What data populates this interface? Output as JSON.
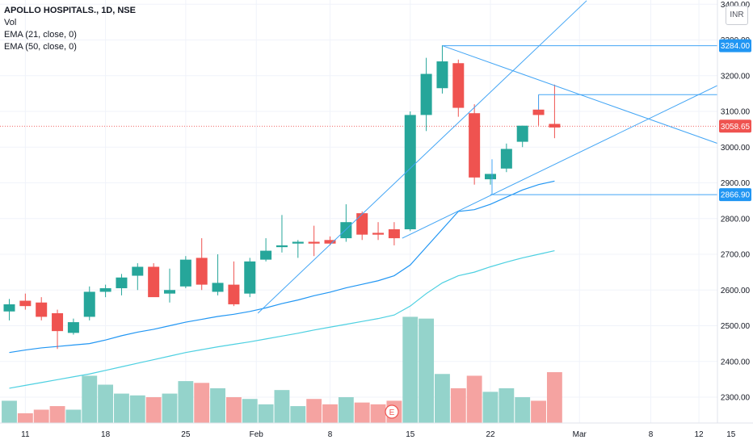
{
  "legend": {
    "title": "APOLLO HOSPITALS., 1D, NSE",
    "vol": "Vol",
    "ema21": "EMA (21, close, 0)",
    "ema50": "EMA (50, close, 0)"
  },
  "currency": "INR",
  "earnings_marker": "E",
  "colors": {
    "up": "#26a69a",
    "down": "#ef5350",
    "vol_up": "#94d3cb",
    "vol_down": "#f5a3a1",
    "ema21": "#2196f3",
    "ema50": "#4dd0e1",
    "trendline": "#42a5f5",
    "tag_blue": "#2196f3",
    "tag_red": "#ef5350"
  },
  "chart_data": {
    "type": "candlestick",
    "y_ticks": [
      2300,
      2400,
      2500,
      2600,
      2700,
      2800,
      2900,
      3000,
      3100,
      3200,
      3300,
      3400
    ],
    "y_tick_labels": [
      "2300.00",
      "2400.00",
      "2500.00",
      "2600.00",
      "2700.00",
      "2800.00",
      "2900.00",
      "3000.00",
      "3100.00",
      "3200.00",
      "3300.00",
      "3400.00"
    ],
    "x_ticks": [
      {
        "label": "11",
        "bar": 1
      },
      {
        "label": "18",
        "bar": 6
      },
      {
        "label": "25",
        "bar": 11
      },
      {
        "label": "Feb",
        "bar": 15
      },
      {
        "label": "8",
        "bar": 20
      },
      {
        "label": "15",
        "bar": 25
      },
      {
        "label": "22",
        "bar": 30
      },
      {
        "label": "Mar",
        "bar": 35
      },
      {
        "label": "8",
        "bar": 40
      },
      {
        "label": "12",
        "bar": 43
      },
      {
        "label": "15",
        "bar": 45
      }
    ],
    "candles": [
      {
        "o": 2540,
        "h": 2575,
        "l": 2515,
        "c": 2560,
        "v": 2290
      },
      {
        "o": 2570,
        "h": 2590,
        "l": 2545,
        "c": 2555,
        "v": 2255
      },
      {
        "o": 2565,
        "h": 2580,
        "l": 2515,
        "c": 2525,
        "v": 2265
      },
      {
        "o": 2535,
        "h": 2545,
        "l": 2435,
        "c": 2485,
        "v": 2275
      },
      {
        "o": 2480,
        "h": 2520,
        "l": 2475,
        "c": 2510,
        "v": 2265
      },
      {
        "o": 2525,
        "h": 2610,
        "l": 2515,
        "c": 2595,
        "v": 2360
      },
      {
        "o": 2595,
        "h": 2615,
        "l": 2580,
        "c": 2605,
        "v": 2335
      },
      {
        "o": 2605,
        "h": 2645,
        "l": 2585,
        "c": 2635,
        "v": 2310
      },
      {
        "o": 2640,
        "h": 2675,
        "l": 2600,
        "c": 2665,
        "v": 2305
      },
      {
        "o": 2665,
        "h": 2675,
        "l": 2585,
        "c": 2580,
        "v": 2300
      },
      {
        "o": 2590,
        "h": 2660,
        "l": 2565,
        "c": 2600,
        "v": 2310
      },
      {
        "o": 2610,
        "h": 2695,
        "l": 2605,
        "c": 2685,
        "v": 2345
      },
      {
        "o": 2690,
        "h": 2745,
        "l": 2600,
        "c": 2615,
        "v": 2340
      },
      {
        "o": 2595,
        "h": 2700,
        "l": 2585,
        "c": 2620,
        "v": 2325
      },
      {
        "o": 2615,
        "h": 2680,
        "l": 2555,
        "c": 2560,
        "v": 2300
      },
      {
        "o": 2590,
        "h": 2690,
        "l": 2580,
        "c": 2680,
        "v": 2295
      },
      {
        "o": 2685,
        "h": 2745,
        "l": 2680,
        "c": 2710,
        "v": 2280
      },
      {
        "o": 2720,
        "h": 2810,
        "l": 2705,
        "c": 2725,
        "v": 2320
      },
      {
        "o": 2730,
        "h": 2740,
        "l": 2690,
        "c": 2735,
        "v": 2275
      },
      {
        "o": 2735,
        "h": 2780,
        "l": 2695,
        "c": 2730,
        "v": 2295
      },
      {
        "o": 2740,
        "h": 2750,
        "l": 2725,
        "c": 2730,
        "v": 2280
      },
      {
        "o": 2745,
        "h": 2840,
        "l": 2735,
        "c": 2790,
        "v": 2300
      },
      {
        "o": 2815,
        "h": 2820,
        "l": 2740,
        "c": 2755,
        "v": 2285
      },
      {
        "o": 2760,
        "h": 2790,
        "l": 2740,
        "c": 2755,
        "v": 2280
      },
      {
        "o": 2770,
        "h": 2790,
        "l": 2725,
        "c": 2745,
        "v": 2290
      },
      {
        "o": 2770,
        "h": 3100,
        "l": 2765,
        "c": 3090,
        "v": 2525
      },
      {
        "o": 3090,
        "h": 3250,
        "l": 3045,
        "c": 3205,
        "v": 2520
      },
      {
        "o": 3165,
        "h": 3285,
        "l": 3150,
        "c": 3240,
        "v": 2365
      },
      {
        "o": 3235,
        "h": 3245,
        "l": 3085,
        "c": 3110,
        "v": 2325
      },
      {
        "o": 3095,
        "h": 3120,
        "l": 2895,
        "c": 2915,
        "v": 2360
      },
      {
        "o": 2910,
        "h": 2920,
        "l": 2895,
        "c": 2925,
        "v": 2315
      },
      {
        "o": 2940,
        "h": 3010,
        "l": 2930,
        "c": 2995,
        "v": 2325
      },
      {
        "o": 3015,
        "h": 3060,
        "l": 3000,
        "c": 3060,
        "v": 2300
      },
      {
        "o": 3105,
        "h": 3145,
        "l": 3060,
        "c": 3090,
        "v": 2290
      },
      {
        "o": 3065,
        "h": 3175,
        "l": 3025,
        "c": 3055,
        "v": 2370
      }
    ],
    "ema21": [
      2425,
      2432,
      2438,
      2442,
      2446,
      2450,
      2460,
      2472,
      2482,
      2490,
      2500,
      2510,
      2518,
      2526,
      2532,
      2540,
      2550,
      2562,
      2572,
      2584,
      2594,
      2606,
      2616,
      2626,
      2640,
      2670,
      2720,
      2770,
      2820,
      2825,
      2840,
      2860,
      2880,
      2895,
      2905
    ],
    "ema50": [
      2325,
      2333,
      2341,
      2349,
      2357,
      2365,
      2375,
      2385,
      2395,
      2405,
      2415,
      2425,
      2433,
      2441,
      2448,
      2455,
      2463,
      2471,
      2479,
      2488,
      2496,
      2504,
      2512,
      2520,
      2530,
      2555,
      2590,
      2620,
      2640,
      2650,
      2665,
      2678,
      2690,
      2700,
      2710
    ],
    "price_tags": [
      {
        "value": 3284.0,
        "label": "3284.00",
        "color": "blue"
      },
      {
        "value": 3058.65,
        "label": "3058.65",
        "color": "red"
      },
      {
        "value": 2866.9,
        "label": "2866.90",
        "color": "blue"
      }
    ],
    "horizontal_lines": [
      {
        "value": 3284.0,
        "from_bar": 27
      },
      {
        "value": 3147.0,
        "from_bar": 33
      },
      {
        "value": 2866.9,
        "from_bar": 30
      }
    ],
    "trend_lines": [
      {
        "bar1": 15.5,
        "p1": 2535,
        "bar2": 36,
        "p2": 3410
      },
      {
        "bar1": 27,
        "p1": 3284,
        "bar2": 44.5,
        "p2": 3005
      },
      {
        "bar1": 24.5,
        "p1": 2745,
        "bar2": 44.5,
        "p2": 3180
      },
      {
        "bar1": 30.1,
        "p1": 2966,
        "bar2": 30.1,
        "p2": 2866.9
      },
      {
        "bar1": 33,
        "p1": 3147,
        "bar2": 33,
        "p2": 3105
      }
    ]
  }
}
